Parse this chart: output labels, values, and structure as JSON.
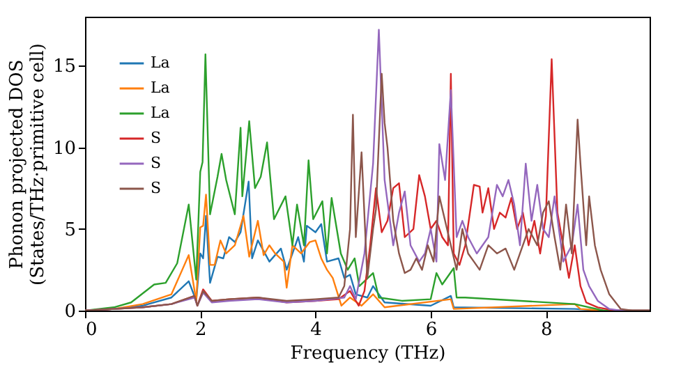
{
  "chart_data": {
    "type": "line",
    "xlabel": "Frequency (THz)",
    "ylabel": "Phonon projected DOS\n(States/THz·primitive cell)",
    "xlim": [
      0,
      9.8
    ],
    "ylim": [
      0,
      18
    ],
    "xticks": [
      0,
      2,
      4,
      6,
      8
    ],
    "yticks": [
      0,
      5,
      10,
      15
    ],
    "grid": false,
    "legend": "top left",
    "marker": "none",
    "line_style": "solid",
    "series": [
      {
        "name": "La",
        "color": "#1f77b4",
        "x": [
          0,
          0.5,
          1.0,
          1.5,
          1.8,
          1.93,
          2.0,
          2.05,
          2.1,
          2.17,
          2.3,
          2.4,
          2.5,
          2.6,
          2.7,
          2.84,
          2.9,
          3.0,
          3.2,
          3.4,
          3.5,
          3.7,
          3.8,
          3.85,
          4.0,
          4.1,
          4.2,
          4.4,
          4.5,
          4.6,
          4.7,
          4.9,
          5.0,
          5.2,
          6.0,
          6.35,
          6.4,
          8.5,
          9.0,
          9.8
        ],
        "values": [
          0,
          0.1,
          0.3,
          0.8,
          1.8,
          0.6,
          3.5,
          3.2,
          5.8,
          1.7,
          3.3,
          3.2,
          4.5,
          4.2,
          4.8,
          7.9,
          3.2,
          4.3,
          3.0,
          3.8,
          2.5,
          4.5,
          3.0,
          5.2,
          4.8,
          5.3,
          3.0,
          3.2,
          2.0,
          2.2,
          1.0,
          0.8,
          1.5,
          0.5,
          0.3,
          0.9,
          0.2,
          0.1,
          0,
          0
        ]
      },
      {
        "name": "La",
        "color": "#ff7f0e",
        "x": [
          0,
          0.5,
          1.0,
          1.5,
          1.8,
          1.93,
          2.0,
          2.05,
          2.1,
          2.17,
          2.25,
          2.35,
          2.45,
          2.6,
          2.75,
          2.85,
          3.0,
          3.1,
          3.2,
          3.3,
          3.45,
          3.5,
          3.6,
          3.75,
          3.9,
          4.0,
          4.1,
          4.2,
          4.3,
          4.45,
          4.6,
          4.8,
          5.0,
          5.2,
          6.35,
          6.4,
          8.5,
          8.6,
          9.0,
          9.8
        ],
        "values": [
          0,
          0.1,
          0.4,
          1.0,
          3.4,
          0.6,
          5.1,
          5.2,
          7.1,
          2.8,
          2.8,
          4.3,
          3.5,
          4.0,
          5.8,
          3.3,
          5.5,
          3.4,
          4.0,
          3.5,
          3.0,
          1.4,
          4.0,
          3.5,
          4.2,
          4.3,
          3.2,
          2.5,
          2.0,
          0.3,
          0.8,
          0.3,
          1.0,
          0.2,
          0.7,
          0.1,
          0.4,
          0.1,
          0,
          0
        ]
      },
      {
        "name": "La",
        "color": "#2ca02c",
        "x": [
          0,
          0.5,
          0.8,
          1.2,
          1.4,
          1.6,
          1.8,
          1.93,
          2.0,
          2.04,
          2.09,
          2.17,
          2.3,
          2.37,
          2.45,
          2.6,
          2.7,
          2.73,
          2.85,
          2.95,
          3.05,
          3.16,
          3.28,
          3.48,
          3.6,
          3.68,
          3.8,
          3.88,
          3.96,
          4.12,
          4.2,
          4.28,
          4.44,
          4.56,
          4.68,
          4.76,
          5.0,
          5.1,
          5.5,
          6.0,
          6.1,
          6.2,
          6.4,
          6.45,
          6.6,
          8.5,
          9.0,
          9.8
        ],
        "values": [
          0,
          0.2,
          0.5,
          1.6,
          1.7,
          2.9,
          6.5,
          1.9,
          8.5,
          9.1,
          15.7,
          5.9,
          8.2,
          9.6,
          8.0,
          5.9,
          11.2,
          7.0,
          11.6,
          7.5,
          8.2,
          10.3,
          5.6,
          7.0,
          4.0,
          6.5,
          4.0,
          9.2,
          5.6,
          6.7,
          3.5,
          6.9,
          3.5,
          2.5,
          3.2,
          1.5,
          2.3,
          0.8,
          0.6,
          0.7,
          2.3,
          1.6,
          2.6,
          0.8,
          0.8,
          0.4,
          0,
          0
        ]
      },
      {
        "name": "S",
        "color": "#d62728",
        "x": [
          0,
          1.0,
          1.5,
          1.9,
          1.95,
          2.05,
          2.2,
          2.5,
          3.0,
          3.5,
          4.0,
          4.4,
          4.6,
          4.75,
          4.85,
          4.95,
          5.05,
          5.15,
          5.25,
          5.35,
          5.45,
          5.55,
          5.7,
          5.8,
          5.9,
          6.0,
          6.1,
          6.2,
          6.3,
          6.35,
          6.4,
          6.5,
          6.6,
          6.75,
          6.85,
          6.9,
          7.0,
          7.1,
          7.2,
          7.3,
          7.4,
          7.5,
          7.6,
          7.7,
          7.8,
          7.9,
          8.0,
          8.1,
          8.2,
          8.3,
          8.4,
          8.5,
          8.6,
          8.7,
          8.9,
          9.2,
          9.8
        ],
        "values": [
          0,
          0.2,
          0.4,
          0.9,
          0.3,
          1.3,
          0.6,
          0.7,
          0.8,
          0.5,
          0.6,
          0.7,
          1.2,
          0.3,
          1.2,
          4.0,
          7.5,
          4.8,
          5.5,
          7.5,
          7.8,
          4.5,
          5.0,
          8.3,
          7.0,
          5.0,
          5.5,
          4.5,
          4.0,
          14.5,
          3.5,
          2.8,
          4.0,
          7.7,
          7.6,
          6.0,
          7.5,
          5.0,
          6.0,
          5.7,
          6.9,
          5.0,
          6.0,
          4.0,
          5.5,
          3.5,
          5.8,
          15.4,
          6.0,
          4.0,
          2.0,
          4.0,
          1.5,
          0.5,
          0.2,
          0,
          0
        ]
      },
      {
        "name": "S",
        "color": "#9467bd",
        "x": [
          0,
          1.0,
          1.5,
          1.9,
          1.95,
          2.05,
          2.2,
          2.5,
          3.0,
          3.5,
          4.0,
          4.5,
          4.6,
          4.7,
          4.85,
          5.0,
          5.1,
          5.2,
          5.35,
          5.45,
          5.55,
          5.65,
          5.8,
          5.9,
          6.0,
          6.1,
          6.15,
          6.25,
          6.35,
          6.45,
          6.55,
          6.65,
          6.8,
          7.0,
          7.15,
          7.25,
          7.35,
          7.45,
          7.55,
          7.65,
          7.75,
          7.85,
          7.95,
          8.05,
          8.15,
          8.3,
          8.45,
          8.55,
          8.65,
          8.75,
          8.9,
          9.1,
          9.3,
          9.8
        ],
        "values": [
          0,
          0.2,
          0.4,
          0.8,
          0.3,
          1.1,
          0.5,
          0.6,
          0.7,
          0.5,
          0.6,
          0.8,
          1.5,
          0.7,
          3.5,
          9.0,
          17.2,
          8.0,
          4.0,
          6.0,
          7.3,
          4.0,
          3.0,
          3.5,
          5.0,
          3.0,
          10.2,
          8.0,
          13.5,
          4.5,
          5.5,
          4.5,
          3.5,
          4.5,
          7.7,
          7.0,
          8.0,
          6.5,
          4.0,
          9.0,
          5.5,
          7.7,
          5.0,
          4.5,
          7.0,
          3.0,
          4.0,
          6.5,
          2.5,
          1.5,
          0.6,
          0.1,
          0,
          0
        ]
      },
      {
        "name": "S",
        "color": "#8c564b",
        "x": [
          0,
          1.0,
          1.5,
          1.9,
          1.95,
          2.05,
          2.2,
          2.5,
          3.0,
          3.5,
          4.0,
          4.4,
          4.5,
          4.6,
          4.65,
          4.7,
          4.8,
          4.9,
          5.0,
          5.05,
          5.15,
          5.2,
          5.25,
          5.35,
          5.45,
          5.55,
          5.65,
          5.75,
          5.85,
          5.95,
          6.05,
          6.15,
          6.25,
          6.35,
          6.45,
          6.55,
          6.65,
          6.75,
          6.85,
          7.0,
          7.15,
          7.3,
          7.45,
          7.55,
          7.7,
          7.85,
          7.95,
          8.05,
          8.15,
          8.25,
          8.35,
          8.45,
          8.55,
          8.6,
          8.7,
          8.75,
          8.85,
          8.95,
          9.1,
          9.3,
          9.5,
          9.8
        ],
        "values": [
          0,
          0.2,
          0.4,
          0.9,
          0.3,
          1.2,
          0.6,
          0.7,
          0.8,
          0.6,
          0.7,
          0.8,
          1.5,
          5.0,
          12.0,
          4.5,
          9.7,
          2.0,
          5.0,
          6.2,
          14.5,
          11.5,
          10.0,
          5.5,
          3.5,
          2.3,
          2.5,
          3.2,
          2.5,
          4.0,
          3.0,
          7.0,
          5.5,
          4.0,
          2.5,
          5.0,
          3.5,
          3.0,
          2.5,
          4.0,
          3.5,
          3.8,
          2.5,
          3.5,
          5.0,
          4.0,
          6.0,
          6.7,
          4.5,
          2.5,
          6.5,
          3.5,
          11.7,
          9.0,
          4.0,
          7.0,
          4.0,
          2.5,
          1.0,
          0.1,
          0,
          0
        ]
      }
    ]
  }
}
